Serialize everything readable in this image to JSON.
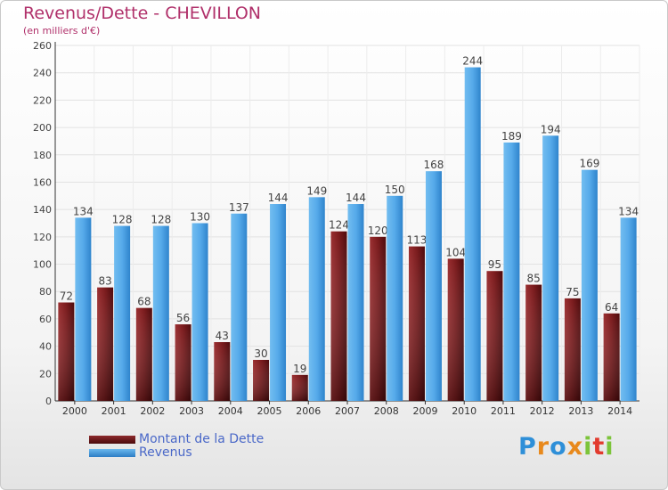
{
  "chart_data": {
    "type": "bar",
    "title": "Revenus/Dette - CHEVILLON",
    "subtitle": "(en milliers d'€)",
    "categories": [
      "2000",
      "2001",
      "2002",
      "2003",
      "2004",
      "2005",
      "2006",
      "2007",
      "2008",
      "2009",
      "2010",
      "2011",
      "2012",
      "2013",
      "2014"
    ],
    "series": [
      {
        "name": "Montant de la Dette",
        "color": "#7a1a1c",
        "values": [
          72,
          83,
          68,
          56,
          43,
          30,
          19,
          124,
          120,
          113,
          104,
          95,
          85,
          75,
          64
        ]
      },
      {
        "name": "Revenus",
        "color": "#4aa3e4",
        "values": [
          134,
          128,
          128,
          130,
          137,
          144,
          149,
          144,
          150,
          168,
          244,
          189,
          194,
          169,
          134
        ]
      }
    ],
    "ylim": [
      0,
      260
    ],
    "yticks": [
      0,
      20,
      40,
      60,
      80,
      100,
      120,
      140,
      160,
      180,
      200,
      220,
      240,
      260
    ],
    "grid": true,
    "legend_position": "bottom-left"
  },
  "logo": {
    "letters": [
      "P",
      "r",
      "o",
      "x",
      "i",
      "t",
      "i"
    ],
    "colors": [
      "#2e8fd8",
      "#e8891c",
      "#2e8fd8",
      "#e8891c",
      "#7cc43a",
      "#e23b2e",
      "#7cc43a"
    ]
  }
}
